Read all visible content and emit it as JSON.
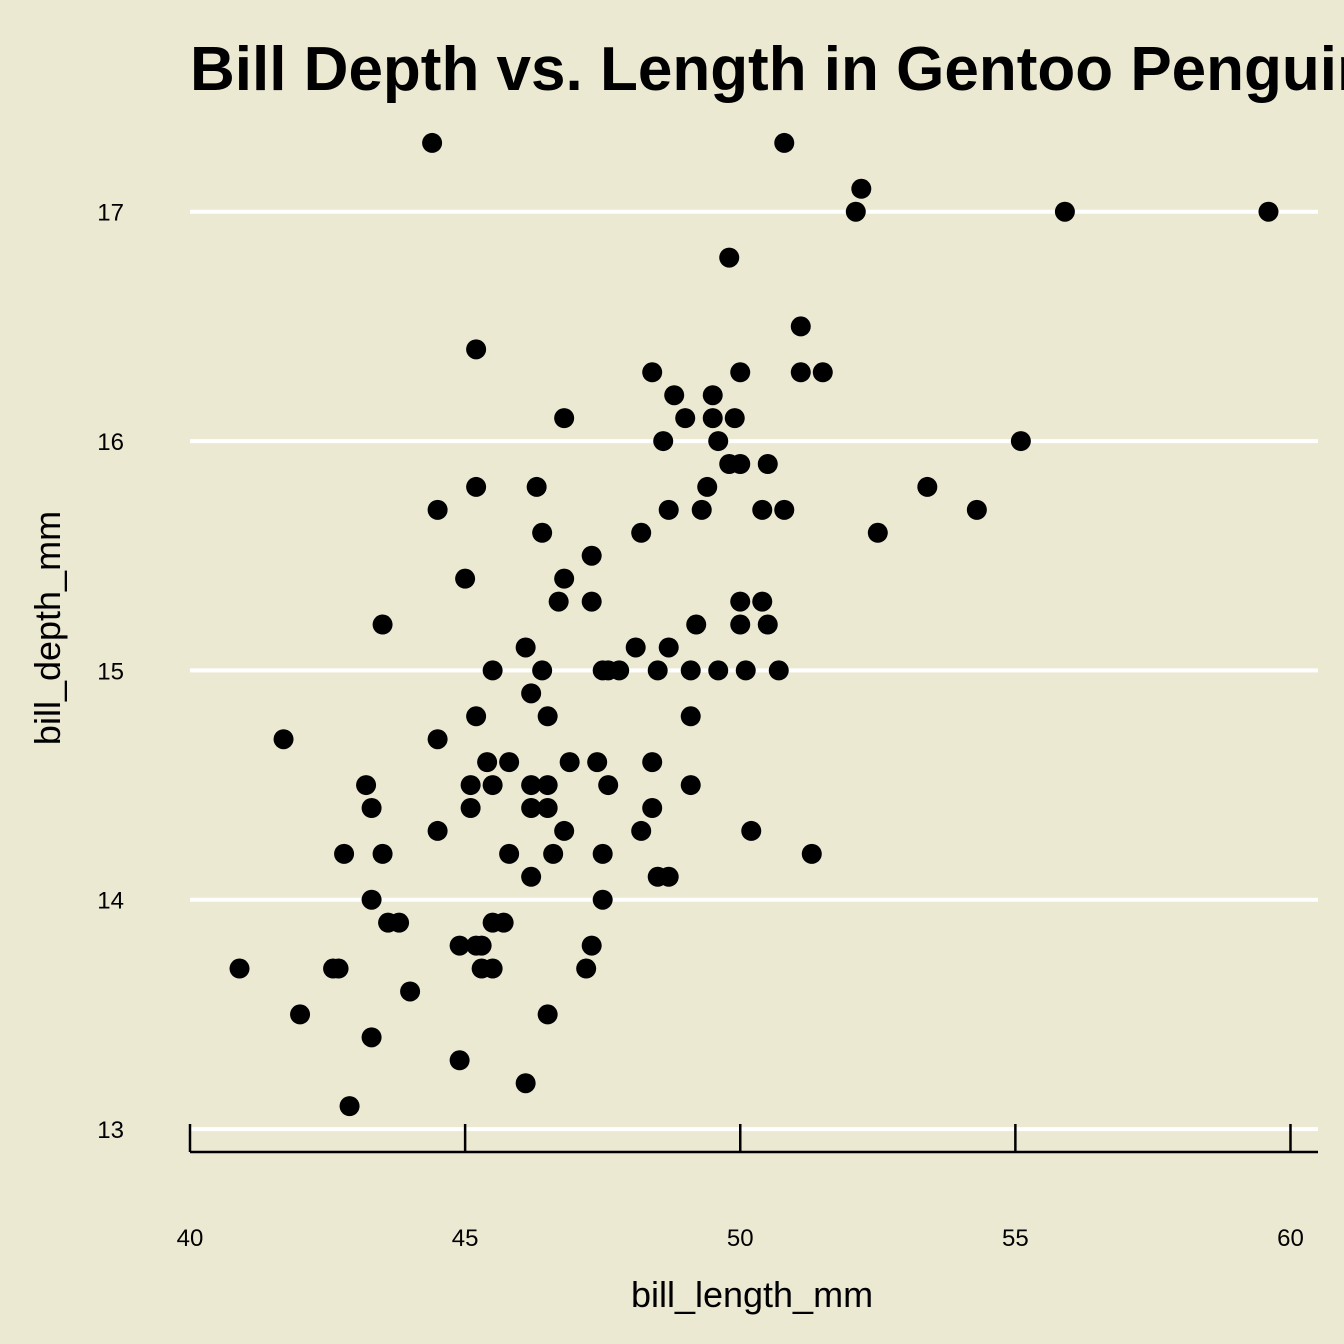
{
  "chart_data": {
    "type": "scatter",
    "title": "Bill Depth vs. Length in Gentoo Penguins",
    "xlabel": "bill_length_mm",
    "ylabel": "bill_depth_mm",
    "xlim": [
      40,
      60.5
    ],
    "ylim": [
      12.9,
      17.4
    ],
    "x_ticks": [
      40,
      45,
      50,
      55,
      60
    ],
    "y_ticks": [
      13,
      14,
      15,
      16,
      17
    ],
    "grid": "horizontal",
    "colors": {
      "background": "#ECE9D3",
      "points": "#000000",
      "grid": "#FFFFFF"
    },
    "points": [
      [
        44.4,
        17.3
      ],
      [
        50.8,
        17.3
      ],
      [
        52.2,
        17.1
      ],
      [
        52.1,
        17.0
      ],
      [
        55.9,
        17.0
      ],
      [
        59.6,
        17.0
      ],
      [
        49.8,
        16.8
      ],
      [
        51.1,
        16.5
      ],
      [
        45.2,
        16.4
      ],
      [
        48.4,
        16.3
      ],
      [
        50.0,
        16.3
      ],
      [
        51.1,
        16.3
      ],
      [
        51.5,
        16.3
      ],
      [
        48.8,
        16.2
      ],
      [
        49.5,
        16.2
      ],
      [
        46.8,
        16.1
      ],
      [
        49.0,
        16.1
      ],
      [
        49.5,
        16.1
      ],
      [
        49.9,
        16.1
      ],
      [
        48.6,
        16.0
      ],
      [
        49.6,
        16.0
      ],
      [
        55.1,
        16.0
      ],
      [
        49.8,
        15.9
      ],
      [
        50.0,
        15.9
      ],
      [
        50.5,
        15.9
      ],
      [
        45.2,
        15.8
      ],
      [
        46.3,
        15.8
      ],
      [
        49.4,
        15.8
      ],
      [
        53.4,
        15.8
      ],
      [
        44.5,
        15.7
      ],
      [
        48.7,
        15.7
      ],
      [
        49.3,
        15.7
      ],
      [
        50.4,
        15.7
      ],
      [
        50.8,
        15.7
      ],
      [
        54.3,
        15.7
      ],
      [
        46.4,
        15.6
      ],
      [
        48.2,
        15.6
      ],
      [
        52.5,
        15.6
      ],
      [
        47.3,
        15.5
      ],
      [
        45.0,
        15.4
      ],
      [
        46.8,
        15.4
      ],
      [
        46.7,
        15.3
      ],
      [
        47.3,
        15.3
      ],
      [
        50.0,
        15.3
      ],
      [
        50.4,
        15.3
      ],
      [
        43.5,
        15.2
      ],
      [
        49.2,
        15.2
      ],
      [
        50.0,
        15.2
      ],
      [
        50.5,
        15.2
      ],
      [
        46.1,
        15.1
      ],
      [
        48.1,
        15.1
      ],
      [
        48.7,
        15.1
      ],
      [
        45.5,
        15.0
      ],
      [
        46.4,
        15.0
      ],
      [
        47.5,
        15.0
      ],
      [
        47.6,
        15.0
      ],
      [
        47.8,
        15.0
      ],
      [
        48.5,
        15.0
      ],
      [
        49.1,
        15.0
      ],
      [
        49.6,
        15.0
      ],
      [
        50.1,
        15.0
      ],
      [
        50.7,
        15.0
      ],
      [
        46.2,
        14.9
      ],
      [
        45.2,
        14.8
      ],
      [
        46.5,
        14.8
      ],
      [
        49.1,
        14.8
      ],
      [
        41.7,
        14.7
      ],
      [
        44.5,
        14.7
      ],
      [
        45.4,
        14.6
      ],
      [
        45.8,
        14.6
      ],
      [
        46.9,
        14.6
      ],
      [
        47.4,
        14.6
      ],
      [
        48.4,
        14.6
      ],
      [
        43.2,
        14.5
      ],
      [
        45.1,
        14.5
      ],
      [
        45.5,
        14.5
      ],
      [
        46.2,
        14.5
      ],
      [
        46.5,
        14.5
      ],
      [
        47.6,
        14.5
      ],
      [
        49.1,
        14.5
      ],
      [
        43.3,
        14.4
      ],
      [
        45.1,
        14.4
      ],
      [
        46.2,
        14.4
      ],
      [
        46.5,
        14.4
      ],
      [
        48.4,
        14.4
      ],
      [
        44.5,
        14.3
      ],
      [
        46.8,
        14.3
      ],
      [
        48.2,
        14.3
      ],
      [
        50.2,
        14.3
      ],
      [
        42.8,
        14.2
      ],
      [
        43.5,
        14.2
      ],
      [
        45.8,
        14.2
      ],
      [
        46.6,
        14.2
      ],
      [
        47.5,
        14.2
      ],
      [
        51.3,
        14.2
      ],
      [
        46.2,
        14.1
      ],
      [
        48.5,
        14.1
      ],
      [
        48.7,
        14.1
      ],
      [
        43.3,
        14.0
      ],
      [
        47.5,
        14.0
      ],
      [
        43.6,
        13.9
      ],
      [
        43.8,
        13.9
      ],
      [
        45.5,
        13.9
      ],
      [
        45.7,
        13.9
      ],
      [
        44.9,
        13.8
      ],
      [
        45.2,
        13.8
      ],
      [
        45.3,
        13.8
      ],
      [
        47.3,
        13.8
      ],
      [
        40.9,
        13.7
      ],
      [
        42.6,
        13.7
      ],
      [
        42.7,
        13.7
      ],
      [
        45.3,
        13.7
      ],
      [
        45.5,
        13.7
      ],
      [
        47.2,
        13.7
      ],
      [
        44.0,
        13.6
      ],
      [
        42.0,
        13.5
      ],
      [
        46.5,
        13.5
      ],
      [
        43.3,
        13.4
      ],
      [
        44.9,
        13.3
      ],
      [
        46.1,
        13.2
      ],
      [
        42.9,
        13.1
      ]
    ]
  }
}
